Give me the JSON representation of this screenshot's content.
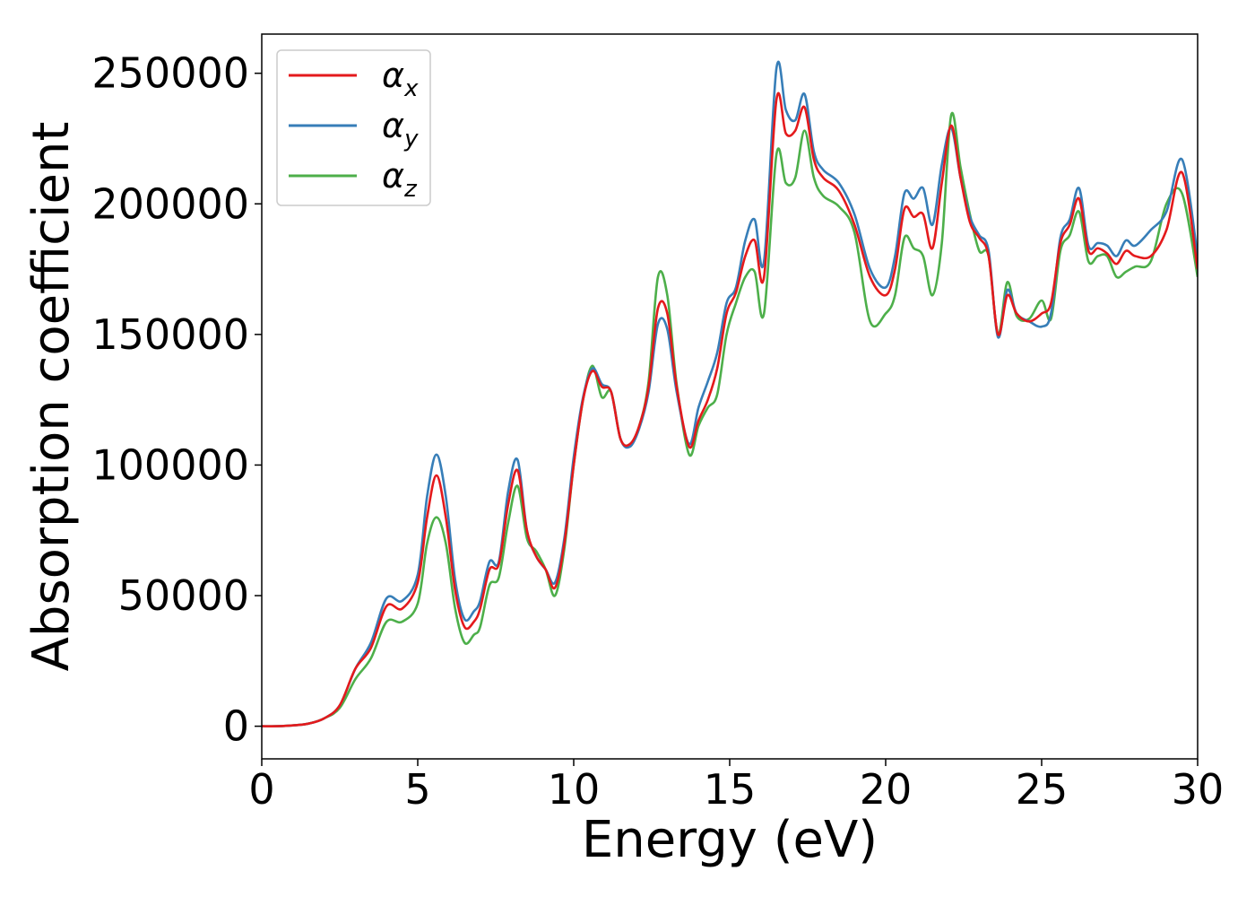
{
  "chart_data": {
    "type": "line",
    "title": "",
    "xlabel": "Energy (eV)",
    "ylabel": "Absorption coefficient",
    "xlim": [
      0,
      30
    ],
    "ylim": [
      -12500,
      265000
    ],
    "xticks": [
      0,
      5,
      10,
      15,
      20,
      25,
      30
    ],
    "xtick_labels": [
      "0",
      "5",
      "10",
      "15",
      "20",
      "25",
      "30"
    ],
    "yticks": [
      0,
      50000,
      100000,
      150000,
      200000,
      250000
    ],
    "ytick_labels": [
      "0",
      "50000",
      "100000",
      "150000",
      "200000",
      "250000"
    ],
    "grid": false,
    "legend_position": "top-left",
    "x": [
      0,
      0.5,
      1.0,
      1.5,
      2.0,
      2.5,
      3.0,
      3.5,
      4.0,
      4.5,
      5.0,
      5.3,
      5.6,
      5.9,
      6.2,
      6.5,
      6.8,
      7.0,
      7.3,
      7.6,
      7.9,
      8.2,
      8.5,
      8.8,
      9.1,
      9.4,
      9.7,
      10.0,
      10.3,
      10.6,
      10.9,
      11.2,
      11.5,
      11.8,
      12.1,
      12.4,
      12.7,
      13.0,
      13.3,
      13.7,
      14.0,
      14.3,
      14.6,
      14.9,
      15.2,
      15.5,
      15.8,
      16.1,
      16.5,
      16.8,
      17.1,
      17.4,
      17.7,
      18.0,
      18.5,
      19.0,
      19.5,
      20.0,
      20.3,
      20.6,
      20.9,
      21.2,
      21.5,
      21.8,
      22.1,
      22.4,
      22.7,
      23.0,
      23.3,
      23.6,
      23.9,
      24.2,
      24.6,
      25.0,
      25.3,
      25.6,
      25.9,
      26.2,
      26.5,
      26.8,
      27.1,
      27.4,
      27.7,
      28.0,
      28.5,
      29.0,
      29.5,
      30.0
    ],
    "series": [
      {
        "name": "αx",
        "color": "#e41a1c",
        "values": [
          0,
          0,
          300,
          1000,
          3000,
          8000,
          22000,
          30000,
          46000,
          45000,
          55000,
          80000,
          96000,
          80000,
          52000,
          38000,
          40000,
          45000,
          60000,
          62000,
          85000,
          98000,
          75000,
          65000,
          60000,
          53000,
          70000,
          100000,
          125000,
          136000,
          130000,
          128000,
          110000,
          108000,
          115000,
          130000,
          160000,
          158000,
          130000,
          107000,
          117000,
          125000,
          137000,
          158000,
          166000,
          180000,
          186000,
          172000,
          240000,
          227000,
          228000,
          237000,
          217000,
          210000,
          205000,
          192000,
          172000,
          165000,
          175000,
          198000,
          195000,
          196000,
          183000,
          208000,
          230000,
          210000,
          193000,
          187000,
          180000,
          150000,
          165000,
          158000,
          155000,
          158000,
          162000,
          185000,
          192000,
          202000,
          182000,
          183000,
          181000,
          177000,
          182000,
          180000,
          180000,
          190000,
          212000,
          175000
        ]
      },
      {
        "name": "αy",
        "color": "#377eb8",
        "values": [
          0,
          0,
          300,
          1000,
          3000,
          8000,
          22000,
          32000,
          49000,
          48000,
          58000,
          88000,
          104000,
          88000,
          56000,
          41000,
          44000,
          48000,
          63000,
          63000,
          90000,
          102000,
          75000,
          65000,
          60000,
          55000,
          72000,
          103000,
          126000,
          137000,
          131000,
          128000,
          110000,
          107000,
          114000,
          128000,
          154000,
          152000,
          128000,
          108000,
          122000,
          132000,
          143000,
          162000,
          168000,
          186000,
          194000,
          178000,
          252000,
          236000,
          232000,
          242000,
          220000,
          213000,
          208000,
          196000,
          175000,
          168000,
          180000,
          204000,
          202000,
          206000,
          192000,
          215000,
          229000,
          210000,
          195000,
          188000,
          182000,
          149000,
          167000,
          158000,
          155000,
          153000,
          158000,
          187000,
          194000,
          206000,
          184000,
          185000,
          184000,
          180000,
          186000,
          184000,
          190000,
          197000,
          217000,
          180000
        ]
      },
      {
        "name": "αz",
        "color": "#4daf4a",
        "values": [
          0,
          0,
          300,
          1000,
          3000,
          7000,
          18000,
          26000,
          40000,
          40000,
          47000,
          70000,
          80000,
          70000,
          45000,
          32000,
          35000,
          38000,
          54000,
          57000,
          78000,
          92000,
          72000,
          67000,
          60000,
          50000,
          68000,
          100000,
          125000,
          138000,
          126000,
          128000,
          110000,
          108000,
          115000,
          132000,
          172000,
          165000,
          131000,
          104000,
          115000,
          122000,
          127000,
          150000,
          162000,
          172000,
          174000,
          158000,
          219000,
          208000,
          210000,
          228000,
          210000,
          203000,
          199000,
          189000,
          155000,
          158000,
          165000,
          187000,
          183000,
          180000,
          165000,
          185000,
          234000,
          214000,
          196000,
          182000,
          180000,
          150000,
          170000,
          157000,
          156000,
          163000,
          156000,
          182000,
          188000,
          197000,
          178000,
          180000,
          180000,
          172000,
          174000,
          176000,
          178000,
          200000,
          204000,
          172000
        ]
      }
    ]
  }
}
